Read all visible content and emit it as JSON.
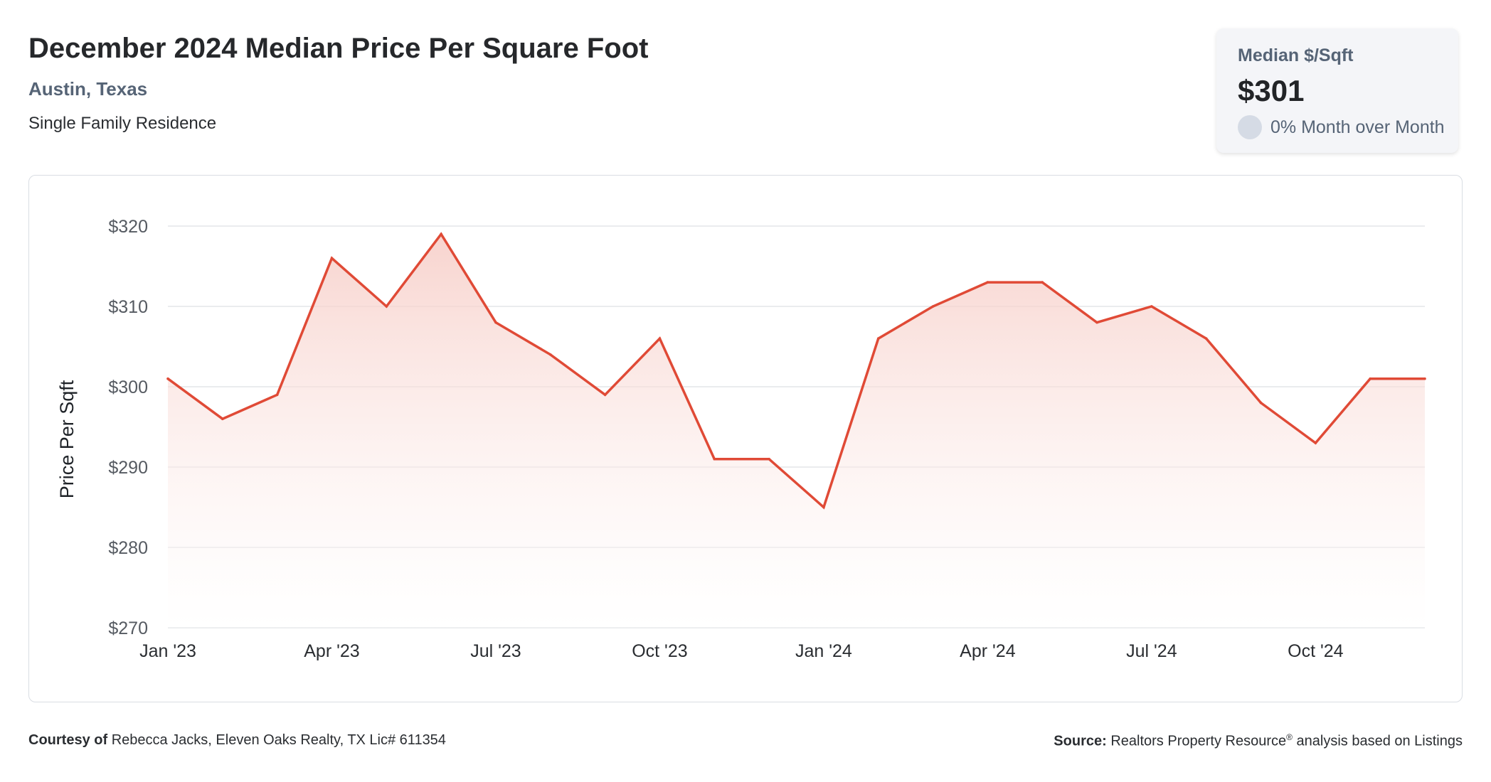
{
  "header": {
    "title": "December 2024 Median Price Per Square Foot",
    "location": "Austin, Texas",
    "property_type": "Single Family Residence"
  },
  "summary_card": {
    "label": "Median $/Sqft",
    "value": "$301",
    "change": "0% Month over Month"
  },
  "footer": {
    "courtesy_label": "Courtesy of",
    "courtesy_text": "Rebecca Jacks, Eleven Oaks Realty, TX Lic# 611354",
    "source_label": "Source:",
    "source_text_pre": "Realtors Property Resource",
    "source_sup": "®",
    "source_text_post": "analysis based on Listings"
  },
  "colors": {
    "line": "#e04a36",
    "fill_top": "#f6c9c2",
    "grid": "#e3e5e8",
    "axis_text": "#555a61"
  },
  "chart_data": {
    "type": "area",
    "ylabel": "Price Per Sqft",
    "xlabel": "",
    "ylim": [
      270,
      320
    ],
    "yticks": [
      270,
      280,
      290,
      300,
      310,
      320
    ],
    "ytick_labels": [
      "$270",
      "$280",
      "$290",
      "$300",
      "$310",
      "$320"
    ],
    "xtick_labels": [
      "Jan '23",
      "Apr '23",
      "Jul '23",
      "Oct '23",
      "Jan '24",
      "Apr '24",
      "Jul '24",
      "Oct '24"
    ],
    "xtick_indices": [
      0,
      3,
      6,
      9,
      12,
      15,
      18,
      21
    ],
    "grid": true,
    "series": [
      {
        "values": [
          301,
          296,
          299,
          316,
          310,
          319,
          308,
          304,
          299,
          306,
          291,
          291,
          285,
          306,
          310,
          313,
          313,
          308,
          310,
          306,
          298,
          293,
          301,
          301
        ]
      }
    ]
  }
}
